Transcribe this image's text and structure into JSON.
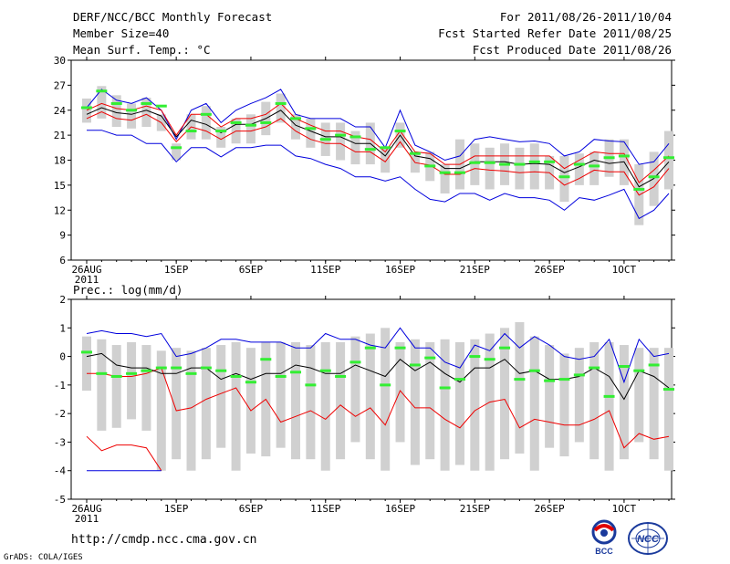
{
  "header": {
    "left": [
      "DERF/NCC/BCC Monthly Forecast",
      "Member Size=40",
      "Mean Surf. Temp.: °C"
    ],
    "right": [
      "For 2011/08/26-2011/10/04",
      "Fcst Started Refer Date 2011/08/25",
      "Fcst Produced Date 2011/08/26"
    ]
  },
  "footer": {
    "url": "http://cmdp.ncc.cma.gov.cn",
    "credit": "GrADS: COLA/IGES"
  },
  "logos": {
    "bcc": "BCC",
    "ncc": "NCC"
  },
  "colors": {
    "max": "#0000dd",
    "min": "#0000dd",
    "upper": "#ee0000",
    "lower": "#ee0000",
    "mean": "#000000",
    "ensemble": "#33ee33",
    "box": "#d0d0d0"
  },
  "chart_data": [
    {
      "type": "line",
      "title": "Mean Surf. Temp.: °C",
      "ylim": [
        6,
        30
      ],
      "yticks": [
        "30",
        "27",
        "24",
        "21",
        "18",
        "15",
        "12",
        "9",
        "6"
      ],
      "xticks": [
        {
          "label": "26AUG",
          "sub": "2011",
          "day": 0
        },
        {
          "label": "1SEP",
          "day": 6
        },
        {
          "label": "6SEP",
          "day": 11
        },
        {
          "label": "11SEP",
          "day": 16
        },
        {
          "label": "16SEP",
          "day": 21
        },
        {
          "label": "21SEP",
          "day": 26
        },
        {
          "label": "26SEP",
          "day": 31
        },
        {
          "label": "1OCT",
          "day": 36
        }
      ],
      "series": [
        {
          "name": "max",
          "values": [
            24.3,
            26.5,
            25.2,
            24.8,
            25.5,
            24.0,
            20.5,
            24.0,
            24.8,
            22.5,
            24.0,
            24.8,
            25.5,
            26.5,
            23.5,
            23.0,
            23.0,
            23.0,
            22.0,
            22.0,
            19.5,
            24.0,
            19.8,
            19.0,
            18.0,
            18.5,
            20.5,
            20.8,
            20.5,
            20.2,
            20.3,
            20.0,
            18.5,
            19.0,
            20.5,
            20.3,
            20.2,
            17.5,
            17.8,
            20.0
          ]
        },
        {
          "name": "upper",
          "values": [
            24.0,
            24.8,
            24.2,
            24.0,
            24.5,
            24.0,
            21.0,
            23.5,
            23.5,
            22.0,
            23.0,
            23.0,
            23.5,
            24.8,
            23.0,
            22.2,
            21.5,
            21.5,
            20.8,
            20.5,
            19.0,
            21.5,
            19.0,
            18.8,
            17.5,
            17.5,
            18.5,
            18.5,
            18.5,
            18.5,
            18.5,
            18.5,
            17.0,
            18.0,
            19.0,
            18.8,
            18.8,
            15.3,
            16.8,
            18.5
          ]
        },
        {
          "name": "mean",
          "values": [
            23.5,
            24.3,
            23.7,
            23.5,
            24.0,
            23.3,
            20.8,
            22.8,
            22.3,
            21.3,
            22.3,
            22.3,
            23.0,
            24.0,
            22.2,
            21.5,
            20.8,
            20.8,
            20.0,
            20.0,
            18.5,
            21.0,
            18.5,
            18.2,
            17.0,
            17.0,
            17.8,
            17.8,
            17.8,
            17.5,
            17.6,
            17.5,
            16.5,
            17.2,
            18.0,
            17.6,
            17.8,
            14.8,
            15.8,
            17.8
          ]
        },
        {
          "name": "lower",
          "values": [
            23.0,
            23.8,
            23.0,
            22.8,
            23.5,
            22.5,
            20.2,
            22.0,
            21.5,
            20.5,
            21.5,
            21.5,
            22.0,
            23.0,
            21.5,
            20.5,
            20.0,
            20.0,
            19.0,
            19.0,
            17.8,
            20.2,
            17.7,
            17.4,
            16.3,
            16.3,
            17.0,
            16.8,
            16.7,
            16.5,
            16.6,
            16.5,
            15.0,
            15.8,
            16.8,
            16.6,
            16.6,
            13.8,
            14.8,
            17.0
          ]
        },
        {
          "name": "min",
          "values": [
            21.6,
            21.6,
            21.0,
            21.0,
            20.0,
            20.0,
            17.8,
            19.5,
            19.5,
            18.4,
            19.5,
            19.5,
            19.8,
            19.8,
            18.5,
            18.2,
            17.5,
            17.0,
            16.0,
            16.0,
            15.5,
            16.0,
            14.5,
            13.3,
            13.0,
            14.0,
            14.0,
            13.2,
            14.0,
            13.5,
            13.5,
            13.2,
            12.0,
            13.5,
            13.2,
            13.8,
            14.5,
            11.0,
            12.0,
            14.0
          ]
        },
        {
          "name": "box_top",
          "values": [
            25.4,
            26.9,
            25.8,
            24.8,
            25.5,
            23.5,
            20.0,
            23.5,
            24.5,
            22.0,
            23.0,
            23.5,
            25.0,
            26.0,
            23.5,
            23.0,
            22.5,
            22.5,
            21.5,
            22.5,
            19.5,
            22.5,
            19.0,
            19.0,
            17.5,
            20.5,
            20.0,
            19.5,
            20.0,
            19.5,
            20.0,
            18.5,
            18.5,
            18.8,
            19.0,
            20.5,
            20.5,
            17.5,
            19.0,
            21.5
          ]
        },
        {
          "name": "box_bottom",
          "values": [
            22.5,
            23.0,
            22.0,
            21.8,
            22.0,
            21.5,
            18.0,
            20.5,
            20.5,
            19.5,
            20.0,
            20.0,
            21.0,
            22.5,
            20.5,
            19.5,
            18.5,
            18.0,
            17.5,
            17.5,
            16.5,
            19.5,
            16.5,
            15.5,
            14.0,
            14.5,
            15.0,
            14.5,
            15.0,
            14.5,
            14.5,
            14.5,
            13.0,
            15.0,
            15.0,
            16.0,
            15.0,
            10.2,
            12.5,
            14.5
          ]
        },
        {
          "name": "ensemble",
          "values": [
            24.3,
            26.3,
            24.8,
            24.0,
            24.8,
            24.5,
            19.5,
            21.5,
            23.5,
            21.5,
            22.5,
            22.2,
            22.5,
            24.8,
            23.0,
            21.8,
            20.5,
            21.0,
            20.8,
            19.3,
            19.5,
            21.5,
            18.8,
            17.3,
            16.5,
            16.5,
            17.7,
            17.7,
            17.5,
            17.5,
            17.8,
            17.8,
            16.0,
            17.5,
            17.3,
            18.3,
            18.5,
            14.5,
            16.0,
            18.3
          ]
        }
      ]
    },
    {
      "type": "line",
      "title": "Prec.: log(mm/d)",
      "ylim": [
        -5,
        2
      ],
      "yticks": [
        "2",
        "1",
        "0",
        "-1",
        "-2",
        "-3",
        "-4",
        "-5"
      ],
      "xticks": [
        {
          "label": "26AUG",
          "sub": "2011",
          "day": 0
        },
        {
          "label": "1SEP",
          "day": 6
        },
        {
          "label": "6SEP",
          "day": 11
        },
        {
          "label": "11SEP",
          "day": 16
        },
        {
          "label": "16SEP",
          "day": 21
        },
        {
          "label": "21SEP",
          "day": 26
        },
        {
          "label": "26SEP",
          "day": 31
        },
        {
          "label": "1OCT",
          "day": 36
        }
      ],
      "series": [
        {
          "name": "max",
          "values": [
            0.8,
            0.9,
            0.8,
            0.8,
            0.7,
            0.8,
            0.0,
            0.1,
            0.3,
            0.6,
            0.6,
            0.5,
            0.5,
            0.5,
            0.3,
            0.3,
            0.8,
            0.6,
            0.6,
            0.4,
            0.3,
            1.0,
            0.3,
            0.3,
            -0.2,
            -0.4,
            0.4,
            0.2,
            0.8,
            0.3,
            0.7,
            0.4,
            0.0,
            -0.1,
            0.0,
            0.6,
            -0.9,
            0.6,
            0.0,
            0.1
          ]
        },
        {
          "name": "mean",
          "values": [
            0.0,
            0.1,
            -0.3,
            -0.4,
            -0.4,
            -0.6,
            -0.6,
            -0.4,
            -0.4,
            -0.8,
            -0.6,
            -0.8,
            -0.6,
            -0.6,
            -0.3,
            -0.4,
            -0.6,
            -0.6,
            -0.3,
            -0.5,
            -0.7,
            -0.1,
            -0.5,
            -0.2,
            -0.6,
            -0.9,
            -0.4,
            -0.4,
            -0.1,
            -0.6,
            -0.5,
            -0.8,
            -0.8,
            -0.7,
            -0.4,
            -0.7,
            -1.5,
            -0.5,
            -0.7,
            -1.1
          ]
        },
        {
          "name": "lower",
          "values": [
            -0.6,
            -0.6,
            -0.7,
            -0.7,
            -0.6,
            -0.4,
            -1.9,
            -1.8,
            -1.5,
            -1.3,
            -1.1,
            -1.9,
            -1.5,
            -2.3,
            -2.1,
            -1.9,
            -2.2,
            -1.7,
            -2.1,
            -1.8,
            -2.4,
            -1.2,
            -1.8,
            -1.8,
            -2.2,
            -2.5,
            -1.9,
            -1.6,
            -1.5,
            -2.5,
            -2.2,
            -2.3,
            -2.4,
            -2.4,
            -2.2,
            -1.9,
            -3.2,
            -2.7,
            -2.9,
            -2.8
          ]
        },
        {
          "name": "lower_red2",
          "values": [
            -2.8,
            -3.3,
            -3.1,
            -3.1,
            -3.2,
            -4.0
          ]
        },
        {
          "name": "min",
          "values": [
            -4,
            -4,
            -4,
            -4,
            -4,
            -4
          ]
        },
        {
          "name": "box_top",
          "values": [
            0.7,
            0.6,
            0.4,
            0.5,
            0.4,
            0.2,
            0.3,
            0.2,
            0.3,
            0.4,
            0.5,
            0.3,
            0.5,
            0.5,
            0.5,
            0.4,
            0.5,
            0.5,
            0.7,
            0.8,
            1.0,
            0.5,
            0.6,
            0.5,
            0.6,
            0.5,
            0.6,
            0.8,
            1.0,
            1.2,
            0.7,
            0.4,
            0.1,
            0.3,
            0.5,
            0.5,
            0.4,
            0.3,
            0.3,
            0.3
          ]
        },
        {
          "name": "box_bottom",
          "values": [
            -1.2,
            -2.6,
            -2.5,
            -2.2,
            -2.6,
            -4.0,
            -3.6,
            -4.0,
            -3.6,
            -3.2,
            -4.0,
            -3.4,
            -3.5,
            -3.2,
            -3.6,
            -3.6,
            -4.0,
            -3.6,
            -3.0,
            -3.6,
            -4.0,
            -3.0,
            -3.8,
            -3.6,
            -4.0,
            -3.8,
            -4.0,
            -4.0,
            -3.6,
            -3.4,
            -4.0,
            -3.2,
            -3.5,
            -3.0,
            -3.6,
            -4.0,
            -3.6,
            -3.0,
            -3.6,
            -4.0
          ]
        },
        {
          "name": "ensemble",
          "values": [
            0.15,
            -0.6,
            -0.7,
            -0.6,
            -0.5,
            -0.4,
            -0.4,
            -0.6,
            -0.4,
            -0.5,
            -0.7,
            -0.9,
            -0.1,
            -0.7,
            -0.55,
            -1.0,
            -0.5,
            -0.7,
            -0.2,
            0.3,
            -1.0,
            0.3,
            -0.3,
            -0.05,
            -1.1,
            -0.8,
            0.0,
            -0.1,
            0.3,
            -0.8,
            -0.5,
            -0.85,
            -0.8,
            -0.65,
            -0.4,
            -1.4,
            -0.35,
            -0.5,
            -0.3,
            -1.15
          ]
        }
      ]
    }
  ]
}
